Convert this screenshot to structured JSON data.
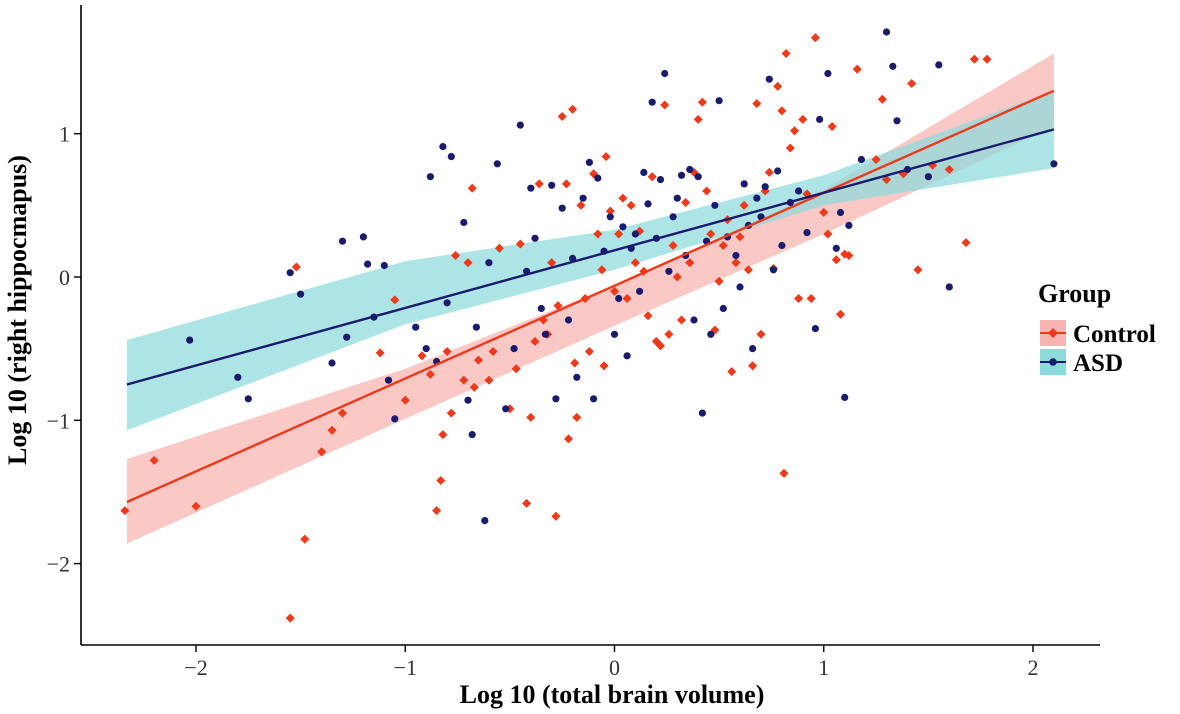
{
  "chart_data": {
    "type": "scatter",
    "xlabel": "Log 10 (total brain volume)",
    "ylabel": "Log 10 (right hippocmapus)",
    "xlim": [
      -2.55,
      2.3
    ],
    "ylim": [
      -2.5,
      1.9
    ],
    "xticks": [
      -2,
      -1,
      0,
      1,
      2
    ],
    "yticks": [
      -2,
      -1,
      0,
      1
    ],
    "xtick_labels": [
      "−2",
      "−1",
      "0",
      "1",
      "2"
    ],
    "ytick_labels": [
      "−2",
      "−1",
      "0",
      "1"
    ],
    "grid": false,
    "legend": {
      "title": "Group",
      "position": "right"
    },
    "colors": {
      "Control": "#ee3a1a",
      "ASD": "#1a1a6e",
      "Control_band": "#f8b4b0",
      "ASD_band": "#8ed9dc"
    },
    "series": [
      {
        "name": "Control",
        "marker": "diamond",
        "fit": {
          "x": [
            -2.33,
            2.1
          ],
          "y": [
            -1.57,
            1.3
          ]
        },
        "band": {
          "x": [
            -2.33,
            -1.0,
            0.0,
            1.0,
            2.1
          ],
          "lower": [
            -1.86,
            -0.99,
            -0.34,
            0.3,
            1.05
          ],
          "upper": [
            -1.27,
            -0.64,
            -0.06,
            0.61,
            1.56
          ]
        },
        "points": [
          [
            -2.34,
            -1.63
          ],
          [
            -2.2,
            -1.28
          ],
          [
            -2.0,
            -1.6
          ],
          [
            -1.55,
            -2.38
          ],
          [
            -1.52,
            0.07
          ],
          [
            -1.48,
            -1.83
          ],
          [
            -1.4,
            -1.22
          ],
          [
            -1.35,
            -1.07
          ],
          [
            -1.3,
            -0.95
          ],
          [
            -1.12,
            -0.53
          ],
          [
            -1.05,
            -0.16
          ],
          [
            -1.0,
            -0.86
          ],
          [
            -0.92,
            -0.55
          ],
          [
            -0.88,
            -0.68
          ],
          [
            -0.85,
            -1.63
          ],
          [
            -0.83,
            -1.42
          ],
          [
            -0.82,
            -1.1
          ],
          [
            -0.8,
            -0.52
          ],
          [
            -0.78,
            -0.95
          ],
          [
            -0.76,
            0.15
          ],
          [
            -0.72,
            -0.72
          ],
          [
            -0.7,
            0.1
          ],
          [
            -0.68,
            0.62
          ],
          [
            -0.67,
            -0.77
          ],
          [
            -0.65,
            -0.58
          ],
          [
            -0.6,
            -0.72
          ],
          [
            -0.58,
            -0.52
          ],
          [
            -0.55,
            0.2
          ],
          [
            -0.5,
            -0.92
          ],
          [
            -0.47,
            -0.64
          ],
          [
            -0.45,
            0.23
          ],
          [
            -0.42,
            -1.58
          ],
          [
            -0.4,
            -0.98
          ],
          [
            -0.38,
            -0.45
          ],
          [
            -0.36,
            0.65
          ],
          [
            -0.34,
            -0.3
          ],
          [
            -0.32,
            -0.4
          ],
          [
            -0.3,
            0.1
          ],
          [
            -0.28,
            -1.67
          ],
          [
            -0.27,
            -0.2
          ],
          [
            -0.25,
            1.12
          ],
          [
            -0.23,
            0.65
          ],
          [
            -0.22,
            -1.13
          ],
          [
            -0.2,
            1.17
          ],
          [
            -0.19,
            -0.6
          ],
          [
            -0.18,
            -0.98
          ],
          [
            -0.16,
            0.5
          ],
          [
            -0.14,
            -0.15
          ],
          [
            -0.12,
            -0.52
          ],
          [
            -0.1,
            0.72
          ],
          [
            -0.08,
            0.3
          ],
          [
            -0.06,
            0.05
          ],
          [
            -0.05,
            -0.62
          ],
          [
            -0.04,
            0.84
          ],
          [
            -0.02,
            0.46
          ],
          [
            0.0,
            -0.1
          ],
          [
            0.02,
            0.3
          ],
          [
            0.04,
            0.55
          ],
          [
            0.06,
            -0.15
          ],
          [
            0.08,
            0.5
          ],
          [
            0.1,
            0.1
          ],
          [
            0.12,
            0.32
          ],
          [
            0.14,
            0.04
          ],
          [
            0.16,
            -0.27
          ],
          [
            0.18,
            0.7
          ],
          [
            0.2,
            -0.45
          ],
          [
            0.22,
            -0.48
          ],
          [
            0.24,
            1.2
          ],
          [
            0.26,
            -0.4
          ],
          [
            0.28,
            0.22
          ],
          [
            0.3,
            0.0
          ],
          [
            0.32,
            -0.3
          ],
          [
            0.34,
            0.52
          ],
          [
            0.36,
            0.1
          ],
          [
            0.38,
            0.73
          ],
          [
            0.4,
            1.1
          ],
          [
            0.42,
            1.22
          ],
          [
            0.44,
            0.6
          ],
          [
            0.46,
            0.3
          ],
          [
            0.48,
            -0.37
          ],
          [
            0.5,
            -0.03
          ],
          [
            0.52,
            0.22
          ],
          [
            0.54,
            0.4
          ],
          [
            0.56,
            -0.66
          ],
          [
            0.58,
            0.1
          ],
          [
            0.6,
            0.28
          ],
          [
            0.62,
            0.5
          ],
          [
            0.64,
            0.05
          ],
          [
            0.66,
            -0.62
          ],
          [
            0.68,
            1.21
          ],
          [
            0.7,
            -0.4
          ],
          [
            0.72,
            0.6
          ],
          [
            0.74,
            0.73
          ],
          [
            0.76,
            0.06
          ],
          [
            0.78,
            1.33
          ],
          [
            0.8,
            1.16
          ],
          [
            0.81,
            -1.37
          ],
          [
            0.82,
            1.56
          ],
          [
            0.84,
            0.9
          ],
          [
            0.86,
            1.02
          ],
          [
            0.88,
            -0.15
          ],
          [
            0.9,
            1.1
          ],
          [
            0.92,
            0.58
          ],
          [
            0.94,
            -0.15
          ],
          [
            0.96,
            1.67
          ],
          [
            1.0,
            0.45
          ],
          [
            1.02,
            0.3
          ],
          [
            1.04,
            1.05
          ],
          [
            1.06,
            0.12
          ],
          [
            1.08,
            -0.26
          ],
          [
            1.1,
            0.16
          ],
          [
            1.12,
            0.15
          ],
          [
            1.16,
            1.45
          ],
          [
            1.25,
            0.82
          ],
          [
            1.28,
            1.24
          ],
          [
            1.3,
            0.68
          ],
          [
            1.38,
            0.72
          ],
          [
            1.42,
            1.35
          ],
          [
            1.45,
            0.05
          ],
          [
            1.52,
            0.78
          ],
          [
            1.6,
            0.75
          ],
          [
            1.68,
            0.24
          ],
          [
            1.72,
            1.52
          ],
          [
            1.78,
            1.52
          ]
        ]
      },
      {
        "name": "ASD",
        "marker": "circle",
        "fit": {
          "x": [
            -2.33,
            2.1
          ],
          "y": [
            -0.75,
            1.03
          ]
        },
        "band": {
          "x": [
            -2.33,
            -1.0,
            0.0,
            1.0,
            2.1
          ],
          "lower": [
            -1.07,
            -0.33,
            0.05,
            0.5,
            0.76
          ],
          "upper": [
            -0.44,
            0.11,
            0.33,
            0.71,
            1.3
          ]
        },
        "points": [
          [
            -2.03,
            -0.44
          ],
          [
            -1.8,
            -0.7
          ],
          [
            -1.75,
            -0.85
          ],
          [
            -1.55,
            0.03
          ],
          [
            -1.5,
            -0.12
          ],
          [
            -1.35,
            -0.6
          ],
          [
            -1.3,
            0.25
          ],
          [
            -1.28,
            -0.42
          ],
          [
            -1.2,
            0.28
          ],
          [
            -1.18,
            0.09
          ],
          [
            -1.15,
            -0.28
          ],
          [
            -1.1,
            0.08
          ],
          [
            -1.08,
            -0.72
          ],
          [
            -1.05,
            -0.99
          ],
          [
            -0.95,
            -0.35
          ],
          [
            -0.9,
            -0.5
          ],
          [
            -0.88,
            0.7
          ],
          [
            -0.85,
            -0.59
          ],
          [
            -0.82,
            0.91
          ],
          [
            -0.8,
            -0.18
          ],
          [
            -0.78,
            0.84
          ],
          [
            -0.72,
            0.38
          ],
          [
            -0.7,
            -0.86
          ],
          [
            -0.68,
            -1.1
          ],
          [
            -0.66,
            -0.35
          ],
          [
            -0.62,
            -1.7
          ],
          [
            -0.6,
            0.1
          ],
          [
            -0.56,
            0.79
          ],
          [
            -0.52,
            -0.92
          ],
          [
            -0.48,
            -0.5
          ],
          [
            -0.45,
            1.06
          ],
          [
            -0.42,
            0.04
          ],
          [
            -0.4,
            0.62
          ],
          [
            -0.38,
            0.27
          ],
          [
            -0.35,
            -0.22
          ],
          [
            -0.33,
            -0.4
          ],
          [
            -0.3,
            0.64
          ],
          [
            -0.28,
            -0.85
          ],
          [
            -0.25,
            0.48
          ],
          [
            -0.22,
            -0.3
          ],
          [
            -0.2,
            0.13
          ],
          [
            -0.18,
            -0.7
          ],
          [
            -0.15,
            0.55
          ],
          [
            -0.12,
            0.8
          ],
          [
            -0.1,
            -0.85
          ],
          [
            -0.08,
            0.69
          ],
          [
            -0.05,
            0.18
          ],
          [
            -0.02,
            0.42
          ],
          [
            0.0,
            -0.4
          ],
          [
            0.02,
            -0.15
          ],
          [
            0.04,
            0.35
          ],
          [
            0.06,
            -0.55
          ],
          [
            0.08,
            0.2
          ],
          [
            0.1,
            0.3
          ],
          [
            0.12,
            -0.1
          ],
          [
            0.14,
            0.73
          ],
          [
            0.16,
            0.51
          ],
          [
            0.18,
            1.22
          ],
          [
            0.2,
            0.27
          ],
          [
            0.22,
            0.68
          ],
          [
            0.24,
            1.42
          ],
          [
            0.26,
            0.04
          ],
          [
            0.28,
            0.42
          ],
          [
            0.3,
            0.55
          ],
          [
            0.32,
            0.71
          ],
          [
            0.34,
            0.15
          ],
          [
            0.36,
            0.75
          ],
          [
            0.38,
            -0.3
          ],
          [
            0.4,
            0.7
          ],
          [
            0.42,
            -0.95
          ],
          [
            0.44,
            0.25
          ],
          [
            0.46,
            -0.4
          ],
          [
            0.48,
            0.5
          ],
          [
            0.5,
            1.23
          ],
          [
            0.52,
            -0.22
          ],
          [
            0.54,
            0.28
          ],
          [
            0.58,
            0.15
          ],
          [
            0.6,
            -0.07
          ],
          [
            0.62,
            0.65
          ],
          [
            0.64,
            0.36
          ],
          [
            0.66,
            -0.5
          ],
          [
            0.68,
            0.55
          ],
          [
            0.7,
            0.42
          ],
          [
            0.72,
            0.63
          ],
          [
            0.74,
            1.38
          ],
          [
            0.76,
            0.05
          ],
          [
            0.78,
            0.74
          ],
          [
            0.8,
            0.22
          ],
          [
            0.84,
            0.52
          ],
          [
            0.88,
            0.6
          ],
          [
            0.92,
            0.31
          ],
          [
            0.96,
            -0.36
          ],
          [
            0.98,
            1.1
          ],
          [
            1.02,
            1.42
          ],
          [
            1.06,
            0.2
          ],
          [
            1.08,
            0.45
          ],
          [
            1.1,
            -0.84
          ],
          [
            1.12,
            0.36
          ],
          [
            1.18,
            0.82
          ],
          [
            1.3,
            1.71
          ],
          [
            1.33,
            1.47
          ],
          [
            1.35,
            1.09
          ],
          [
            1.4,
            0.75
          ],
          [
            1.5,
            0.7
          ],
          [
            1.55,
            1.48
          ],
          [
            1.6,
            -0.07
          ],
          [
            2.1,
            0.79
          ]
        ]
      }
    ]
  }
}
